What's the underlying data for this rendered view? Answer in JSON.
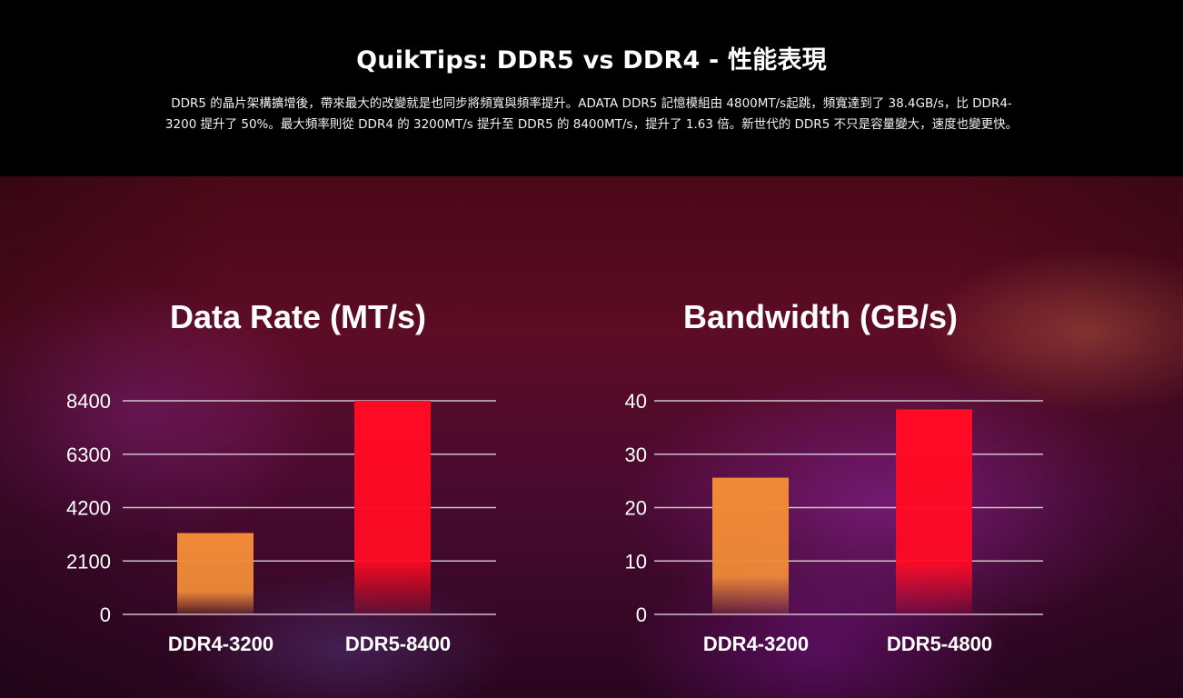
{
  "header": {
    "title": "QuikTips: DDR5 vs DDR4 - 性能表現",
    "description": "DDR5 的晶片架構擴增後，帶來最大的改變就是也同步將頻寬與頻率提升。ADATA  DDR5 記憶模組由 4800MT/s起跳，頻寬達到了 38.4GB/s，比 DDR4-3200 提升了 50%。最大頻率則從 DDR4 的 3200MT/s 提升至 DDR5 的 8400MT/s，提升了 1.63 倍。新世代的 DDR5 不只是容量變大，速度也變更快。"
  },
  "colors": {
    "ddr4_bar": "#f08a38",
    "ddr5_bar": "#ff0a24",
    "gridline": "#e8e0e6"
  },
  "chart_data": [
    {
      "type": "bar",
      "title": "Data Rate (MT/s)",
      "categories": [
        "DDR4-3200",
        "DDR5-8400"
      ],
      "values": [
        3200,
        8400
      ],
      "yticks": [
        0,
        2100,
        4200,
        6300,
        8400
      ],
      "ylim": [
        0,
        8400
      ],
      "grid": true
    },
    {
      "type": "bar",
      "title": "Bandwidth (GB/s)",
      "categories": [
        "DDR4-3200",
        "DDR5-4800"
      ],
      "values": [
        25.6,
        38.4
      ],
      "yticks": [
        0,
        10,
        20,
        30,
        40
      ],
      "ylim": [
        0,
        40
      ],
      "grid": true
    }
  ]
}
